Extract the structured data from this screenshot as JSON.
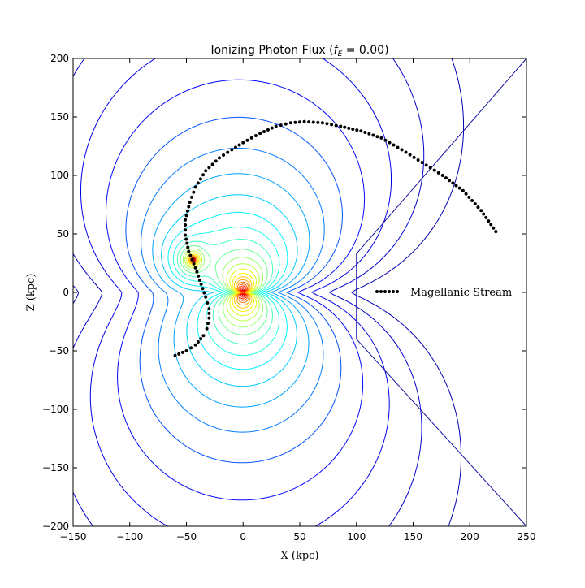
{
  "chart_data": {
    "type": "contour",
    "title": "Ionizing Photon Flux (f_E = 0.00)",
    "title_main": "Ionizing Photon Flux (",
    "title_math": "f",
    "title_sub": "E",
    "title_tail": " = 0.00)",
    "xlabel": "X (kpc)",
    "ylabel": "Z (kpc)",
    "xlim": [
      -150,
      250
    ],
    "ylim": [
      -200,
      200
    ],
    "xticks": [
      -150,
      -100,
      -50,
      0,
      50,
      100,
      150,
      200,
      250
    ],
    "yticks": [
      -200,
      -150,
      -100,
      -50,
      0,
      50,
      100,
      150,
      200
    ],
    "colormap": "jet",
    "grid": false,
    "sources": [
      {
        "x": 0,
        "z": 0
      },
      {
        "x": -44,
        "z": 28
      }
    ],
    "extra_contour": [
      [
        250,
        200
      ],
      [
        100,
        33
      ],
      [
        100,
        -40
      ],
      [
        250,
        -200
      ]
    ],
    "extra_contour_color": "#1010a0",
    "legend": {
      "placement": "right",
      "entries": [
        {
          "name": "Magellanic Stream",
          "marker": "dotted-black"
        }
      ]
    },
    "stream": {
      "name": "Magellanic Stream",
      "color": "#000000",
      "points": [
        [
          -60,
          -54
        ],
        [
          -50,
          -50
        ],
        [
          -42,
          -45
        ],
        [
          -35,
          -37
        ],
        [
          -32,
          -31
        ],
        [
          -30,
          -22
        ],
        [
          -30,
          -14
        ],
        [
          -33,
          -4
        ],
        [
          -37,
          7
        ],
        [
          -42,
          21
        ],
        [
          -48,
          35
        ],
        [
          -51,
          49
        ],
        [
          -51,
          62
        ],
        [
          -47,
          77
        ],
        [
          -42,
          90
        ],
        [
          -33,
          104
        ],
        [
          -21,
          115
        ],
        [
          -10,
          122
        ],
        [
          0,
          128
        ],
        [
          15,
          136
        ],
        [
          29,
          142
        ],
        [
          42,
          145
        ],
        [
          54,
          146
        ],
        [
          70,
          145
        ],
        [
          86,
          142
        ],
        [
          104,
          138
        ],
        [
          122,
          132
        ],
        [
          140,
          122
        ],
        [
          158,
          111
        ],
        [
          176,
          100
        ],
        [
          194,
          87
        ],
        [
          210,
          70
        ],
        [
          223,
          52
        ]
      ]
    }
  }
}
